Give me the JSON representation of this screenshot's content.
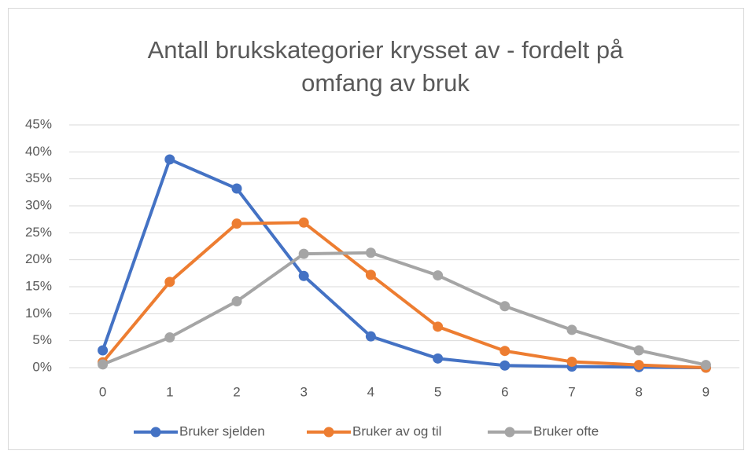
{
  "chart_data": {
    "type": "line",
    "title": [
      "Antall brukskategorier krysset av - fordelt på",
      "omfang av bruk"
    ],
    "categories": [
      "0",
      "1",
      "2",
      "3",
      "4",
      "5",
      "6",
      "7",
      "8",
      "9"
    ],
    "series": [
      {
        "name": "Bruker sjelden",
        "color": "#4472c4",
        "values": [
          3.2,
          38.6,
          33.2,
          17.0,
          5.8,
          1.7,
          0.4,
          0.2,
          0.1,
          0.0
        ]
      },
      {
        "name": "Bruker av og til",
        "color": "#ed7d31",
        "values": [
          1.0,
          15.9,
          26.7,
          26.9,
          17.2,
          7.6,
          3.1,
          1.1,
          0.5,
          0.0
        ]
      },
      {
        "name": "Bruker ofte",
        "color": "#a5a5a5",
        "values": [
          0.6,
          5.6,
          12.3,
          21.1,
          21.3,
          17.1,
          11.4,
          7.0,
          3.2,
          0.5
        ]
      }
    ],
    "ylim": [
      0,
      45
    ],
    "yticks": [
      {
        "value": 0,
        "label": "0%"
      },
      {
        "value": 5,
        "label": "5%"
      },
      {
        "value": 10,
        "label": "10%"
      },
      {
        "value": 15,
        "label": "15%"
      },
      {
        "value": 20,
        "label": "20%"
      },
      {
        "value": 25,
        "label": "25%"
      },
      {
        "value": 30,
        "label": "30%"
      },
      {
        "value": 35,
        "label": "35%"
      },
      {
        "value": 40,
        "label": "40%"
      },
      {
        "value": 45,
        "label": "45%"
      }
    ],
    "grid": true,
    "legend": "bottom"
  }
}
